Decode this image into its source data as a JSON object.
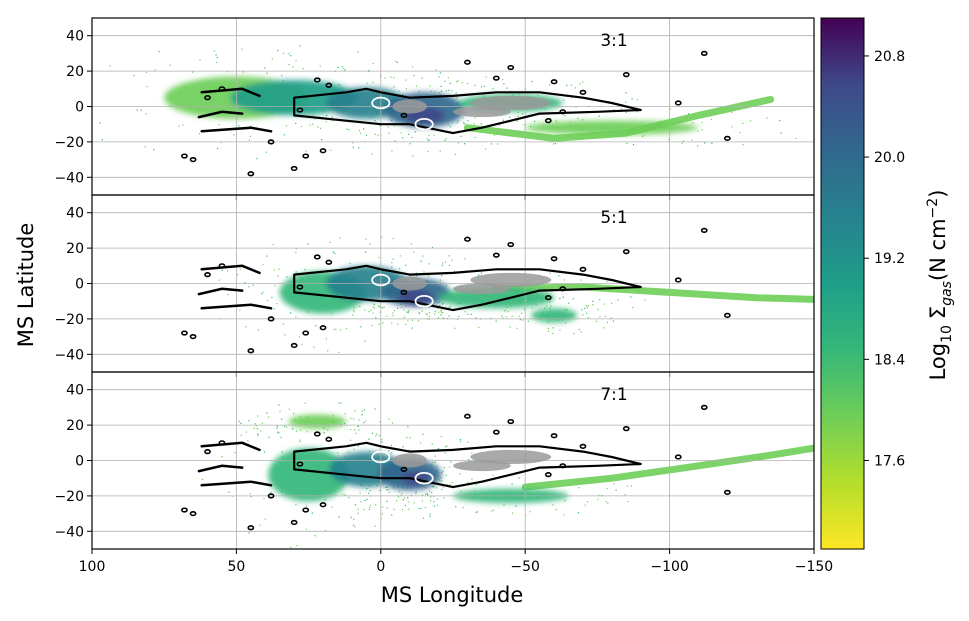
{
  "chart_data": {
    "type": "heatmap",
    "xlabel": "MS Longitude",
    "ylabel": "MS Latitude",
    "xlim": [
      100,
      -150
    ],
    "ylim": [
      -50,
      50
    ],
    "x_ticks": [
      100,
      50,
      0,
      -50,
      -100,
      -150
    ],
    "x_tick_labels": [
      "100",
      "50",
      "0",
      "−50",
      "−100",
      "−150"
    ],
    "y_ticks": [
      40,
      20,
      0,
      -20,
      -40
    ],
    "y_tick_labels": [
      "40",
      "20",
      "0",
      "−20",
      "−40"
    ],
    "grid": true,
    "colormap": "viridis",
    "colorbar": {
      "label": "Log",
      "label_sub": "10",
      "label_sigma": "Σ",
      "label_sigma_sub": "gas",
      "label_units": "(N cm",
      "label_exp": "−2",
      "label_close": ")",
      "range": [
        16.9,
        21.1
      ],
      "ticks": [
        17.6,
        18.4,
        19.2,
        20.0,
        20.8
      ],
      "tick_labels": [
        "17.6",
        "18.4",
        "19.2",
        "20.0",
        "20.8"
      ]
    },
    "panels": [
      {
        "label": "3:1",
        "blobs": [
          {
            "x": 50,
            "y": 5,
            "rx": 25,
            "ry": 12,
            "level": 18.2
          },
          {
            "x": 30,
            "y": 5,
            "rx": 22,
            "ry": 10,
            "level": 18.9
          },
          {
            "x": 5,
            "y": 2,
            "rx": 14,
            "ry": 9,
            "level": 19.5
          },
          {
            "x": -15,
            "y": -2,
            "rx": 14,
            "ry": 10,
            "level": 20.0
          },
          {
            "x": -15,
            "y": -5,
            "rx": 7,
            "ry": 5,
            "level": 20.6
          },
          {
            "x": -45,
            "y": 2,
            "rx": 18,
            "ry": 5,
            "level": 18.6
          },
          {
            "x": -80,
            "y": -12,
            "rx": 30,
            "ry": 4,
            "level": 18.1
          }
        ],
        "stream": [
          [
            -30,
            -12
          ],
          [
            -60,
            -18
          ],
          [
            -85,
            -15
          ],
          [
            -110,
            -5
          ],
          [
            -135,
            4
          ]
        ],
        "stream_level": 17.9
      },
      {
        "label": "5:1",
        "blobs": [
          {
            "x": 20,
            "y": -5,
            "rx": 15,
            "ry": 12,
            "level": 18.4
          },
          {
            "x": 5,
            "y": 0,
            "rx": 14,
            "ry": 10,
            "level": 19.4
          },
          {
            "x": -12,
            "y": -5,
            "rx": 12,
            "ry": 8,
            "level": 20.2
          },
          {
            "x": -12,
            "y": -8,
            "rx": 6,
            "ry": 5,
            "level": 20.8
          },
          {
            "x": -40,
            "y": -8,
            "rx": 20,
            "ry": 6,
            "level": 18.6
          },
          {
            "x": -60,
            "y": -18,
            "rx": 8,
            "ry": 4,
            "level": 18.3
          }
        ],
        "stream": [
          [
            -40,
            -3
          ],
          [
            -70,
            -2
          ],
          [
            -100,
            -5
          ],
          [
            -130,
            -8
          ],
          [
            -150,
            -9
          ]
        ],
        "stream_level": 17.9
      },
      {
        "label": "7:1",
        "blobs": [
          {
            "x": 25,
            "y": -8,
            "rx": 14,
            "ry": 15,
            "level": 18.4
          },
          {
            "x": 22,
            "y": 22,
            "rx": 10,
            "ry": 4,
            "level": 18.0
          },
          {
            "x": 5,
            "y": -5,
            "rx": 13,
            "ry": 10,
            "level": 19.3
          },
          {
            "x": -10,
            "y": -8,
            "rx": 11,
            "ry": 9,
            "level": 20.0
          },
          {
            "x": -12,
            "y": -10,
            "rx": 5,
            "ry": 4,
            "level": 20.6
          },
          {
            "x": -45,
            "y": -20,
            "rx": 20,
            "ry": 4,
            "level": 18.3
          }
        ],
        "stream": [
          [
            -50,
            -15
          ],
          [
            -80,
            -10
          ],
          [
            -110,
            -3
          ],
          [
            -135,
            3
          ],
          [
            -150,
            7
          ]
        ],
        "stream_level": 17.9
      }
    ],
    "contours": {
      "observed_color": "#000000",
      "gray_color": "#9a9a9a",
      "white_color": "#ffffff",
      "main": [
        [
          30,
          5
        ],
        [
          12,
          8
        ],
        [
          5,
          10
        ],
        [
          0,
          8
        ],
        [
          -10,
          5
        ],
        [
          -25,
          6
        ],
        [
          -40,
          8
        ],
        [
          -55,
          8
        ],
        [
          -70,
          5
        ],
        [
          -80,
          2
        ],
        [
          -90,
          -2
        ],
        [
          -75,
          -3
        ],
        [
          -55,
          -4
        ],
        [
          -35,
          -12
        ],
        [
          -25,
          -15
        ],
        [
          -10,
          -10
        ],
        [
          0,
          -10
        ],
        [
          12,
          -8
        ],
        [
          30,
          -5
        ]
      ],
      "gray_patches": [
        [
          -10,
          0,
          6,
          4
        ],
        [
          -45,
          2,
          14,
          4
        ],
        [
          -35,
          -3,
          10,
          3
        ]
      ],
      "white_rings": [
        [
          0,
          2,
          3,
          3
        ],
        [
          -15,
          -10,
          3,
          3
        ]
      ],
      "small_islands": [
        [
          60,
          5
        ],
        [
          55,
          10
        ],
        [
          28,
          -2
        ],
        [
          22,
          15
        ],
        [
          18,
          12
        ],
        [
          -30,
          25
        ],
        [
          -40,
          16
        ],
        [
          -58,
          -8
        ],
        [
          -70,
          8
        ],
        [
          -85,
          18
        ],
        [
          -103,
          2
        ],
        [
          -112,
          30
        ],
        [
          -120,
          -18
        ],
        [
          65,
          -30
        ],
        [
          68,
          -28
        ],
        [
          -45,
          22
        ],
        [
          -8,
          -5
        ],
        [
          45,
          -38
        ],
        [
          30,
          -35
        ],
        [
          38,
          -20
        ],
        [
          26,
          -28
        ],
        [
          20,
          -25
        ],
        [
          -60,
          14
        ],
        [
          -63,
          -3
        ]
      ],
      "long_features": [
        [
          [
            62,
            -14
          ],
          [
            45,
            -12
          ],
          [
            38,
            -14
          ]
        ],
        [
          [
            62,
            8
          ],
          [
            48,
            10
          ],
          [
            42,
            6
          ]
        ],
        [
          [
            63,
            -6
          ],
          [
            55,
            -3
          ],
          [
            48,
            -4
          ]
        ]
      ]
    }
  }
}
